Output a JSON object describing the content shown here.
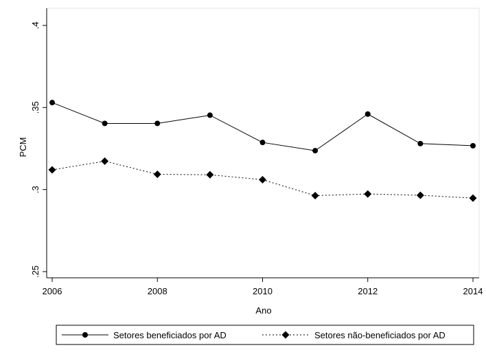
{
  "chart_data": {
    "type": "line",
    "xlabel": "Ano",
    "ylabel": "PCM",
    "xlim": [
      2006,
      2014
    ],
    "ylim": [
      0.25,
      0.4
    ],
    "x_ticks": [
      2006,
      2008,
      2010,
      2012,
      2014
    ],
    "x_tick_labels": [
      "2006",
      "2008",
      "2010",
      "2012",
      "2014"
    ],
    "y_ticks": [
      0.25,
      0.3,
      0.35,
      0.4
    ],
    "y_tick_labels": [
      ".25",
      ".3",
      ".35",
      ".4"
    ],
    "grid": false,
    "legend_position": "bottom",
    "x": [
      2006,
      2007,
      2008,
      2009,
      2010,
      2011,
      2012,
      2013,
      2014
    ],
    "series": [
      {
        "name": "Setores beneficiados por AD",
        "values": [
          0.353,
          0.3403,
          0.3403,
          0.3453,
          0.3287,
          0.3237,
          0.346,
          0.328,
          0.3267
        ],
        "line_style": "solid",
        "marker": "circle",
        "color": "#000000"
      },
      {
        "name": "Setores não-beneficiados por AD",
        "values": [
          0.312,
          0.3173,
          0.3093,
          0.309,
          0.306,
          0.2963,
          0.2973,
          0.2965,
          0.2948
        ],
        "line_style": "dotted",
        "marker": "diamond",
        "color": "#000000"
      }
    ]
  }
}
